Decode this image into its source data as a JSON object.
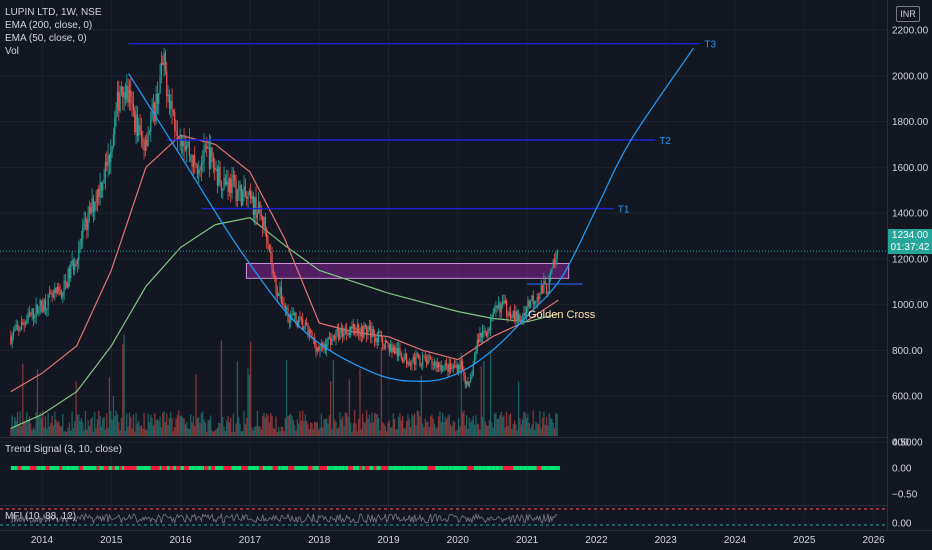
{
  "header": {
    "symbol": "LUPIN LTD, 1W, NSE",
    "indicators": [
      "EMA (200, close, 0)",
      "EMA (50, close, 0)",
      "Vol"
    ],
    "currency": "INR"
  },
  "price_tag": {
    "value": "1234.00",
    "countdown": "01:37:42"
  },
  "annotations": {
    "t1": "T1",
    "t2": "T2",
    "t3": "T3",
    "golden_cross": "Golden Cross"
  },
  "lower_panes": {
    "trend_signal": {
      "title": "Trend Signal (3, 10, close)",
      "ticks": [
        "0.50",
        "0.00",
        "−0.50"
      ]
    },
    "mfi": {
      "title": "MFI (10, 88, 12)",
      "ticks": [
        "0.00"
      ]
    }
  },
  "colors": {
    "background": "#131722",
    "up": "#26a69a",
    "down": "#ef5350",
    "ema200": "#81c784",
    "ema50": "#e57373",
    "targets": "#1e22d6",
    "arc": "#2196f3",
    "zone": "#9c27b0",
    "golden_cross_text": "#ffe0b2"
  },
  "chart_data": {
    "type": "candlestick",
    "title": "LUPIN LTD, 1W, NSE",
    "x_ticks": [
      "2014",
      "2015",
      "2016",
      "2017",
      "2018",
      "2019",
      "2020",
      "2021",
      "2022",
      "2023",
      "2024",
      "2025",
      "2026"
    ],
    "y_ticks": [
      "400.00",
      "600.00",
      "800.00",
      "1000.00",
      "1200.00",
      "1400.00",
      "1600.00",
      "1800.00",
      "2000.00",
      "2200.00"
    ],
    "ylim": [
      330,
      2250
    ],
    "last_price": 1234,
    "price_path": [
      [
        2013.55,
        860
      ],
      [
        2013.8,
        940
      ],
      [
        2014.0,
        1000
      ],
      [
        2014.3,
        1060
      ],
      [
        2014.5,
        1220
      ],
      [
        2014.75,
        1450
      ],
      [
        2014.95,
        1620
      ],
      [
        2015.15,
        1980
      ],
      [
        2015.25,
        1900
      ],
      [
        2015.45,
        1700
      ],
      [
        2015.6,
        1820
      ],
      [
        2015.75,
        2050
      ],
      [
        2015.9,
        1820
      ],
      [
        2016.1,
        1700
      ],
      [
        2016.2,
        1600
      ],
      [
        2016.4,
        1660
      ],
      [
        2016.55,
        1560
      ],
      [
        2016.75,
        1520
      ],
      [
        2016.95,
        1460
      ],
      [
        2017.1,
        1420
      ],
      [
        2017.25,
        1320
      ],
      [
        2017.35,
        1100
      ],
      [
        2017.55,
        960
      ],
      [
        2017.8,
        900
      ],
      [
        2018.0,
        800
      ],
      [
        2018.2,
        860
      ],
      [
        2018.45,
        900
      ],
      [
        2018.75,
        880
      ],
      [
        2019.0,
        820
      ],
      [
        2019.25,
        760
      ],
      [
        2019.45,
        760
      ],
      [
        2019.7,
        740
      ],
      [
        2019.9,
        720
      ],
      [
        2020.05,
        740
      ],
      [
        2020.15,
        620
      ],
      [
        2020.3,
        860
      ],
      [
        2020.45,
        900
      ],
      [
        2020.6,
        1000
      ],
      [
        2020.75,
        980
      ],
      [
        2020.9,
        920
      ],
      [
        2021.0,
        1000
      ],
      [
        2021.15,
        1050
      ],
      [
        2021.3,
        1080
      ],
      [
        2021.45,
        1234
      ]
    ],
    "ema50_path": [
      [
        2013.55,
        620
      ],
      [
        2014.0,
        700
      ],
      [
        2014.5,
        820
      ],
      [
        2015.0,
        1150
      ],
      [
        2015.5,
        1600
      ],
      [
        2016.0,
        1740
      ],
      [
        2016.5,
        1700
      ],
      [
        2017.0,
        1580
      ],
      [
        2017.5,
        1290
      ],
      [
        2018.0,
        920
      ],
      [
        2018.5,
        880
      ],
      [
        2019.0,
        860
      ],
      [
        2019.5,
        800
      ],
      [
        2020.0,
        760
      ],
      [
        2020.5,
        860
      ],
      [
        2021.0,
        930
      ],
      [
        2021.45,
        1020
      ]
    ],
    "ema200_path": [
      [
        2013.55,
        460
      ],
      [
        2014.0,
        520
      ],
      [
        2014.5,
        620
      ],
      [
        2015.0,
        820
      ],
      [
        2015.5,
        1080
      ],
      [
        2016.0,
        1250
      ],
      [
        2016.5,
        1350
      ],
      [
        2017.0,
        1380
      ],
      [
        2017.5,
        1260
      ],
      [
        2018.0,
        1150
      ],
      [
        2018.5,
        1100
      ],
      [
        2019.0,
        1050
      ],
      [
        2019.5,
        1010
      ],
      [
        2020.0,
        970
      ],
      [
        2020.5,
        940
      ],
      [
        2021.0,
        925
      ],
      [
        2021.45,
        960
      ]
    ],
    "targets": [
      {
        "label": "T1",
        "value": 1420,
        "from": 2016.3,
        "to": 2022.25
      },
      {
        "label": "T2",
        "value": 1720,
        "from": 2015.8,
        "to": 2022.85
      },
      {
        "label": "T3",
        "value": 2140,
        "from": 2015.25,
        "to": 2023.5
      }
    ],
    "cup_arc": [
      [
        2015.25,
        2010
      ],
      [
        2016.0,
        1650
      ],
      [
        2016.9,
        1220
      ],
      [
        2017.8,
        880
      ],
      [
        2018.8,
        700
      ],
      [
        2019.5,
        665
      ],
      [
        2020.0,
        700
      ],
      [
        2020.5,
        800
      ],
      [
        2021.0,
        950
      ],
      [
        2021.5,
        1120
      ],
      [
        2022.0,
        1420
      ],
      [
        2022.5,
        1720
      ],
      [
        2023.4,
        2120
      ]
    ],
    "breakout_zone": {
      "from": 2016.95,
      "to": 2021.6,
      "low": 1115,
      "high": 1180
    },
    "neckline": {
      "from": 2021.0,
      "to": 2021.8,
      "value": 1090
    },
    "volume_scale": "relative"
  }
}
